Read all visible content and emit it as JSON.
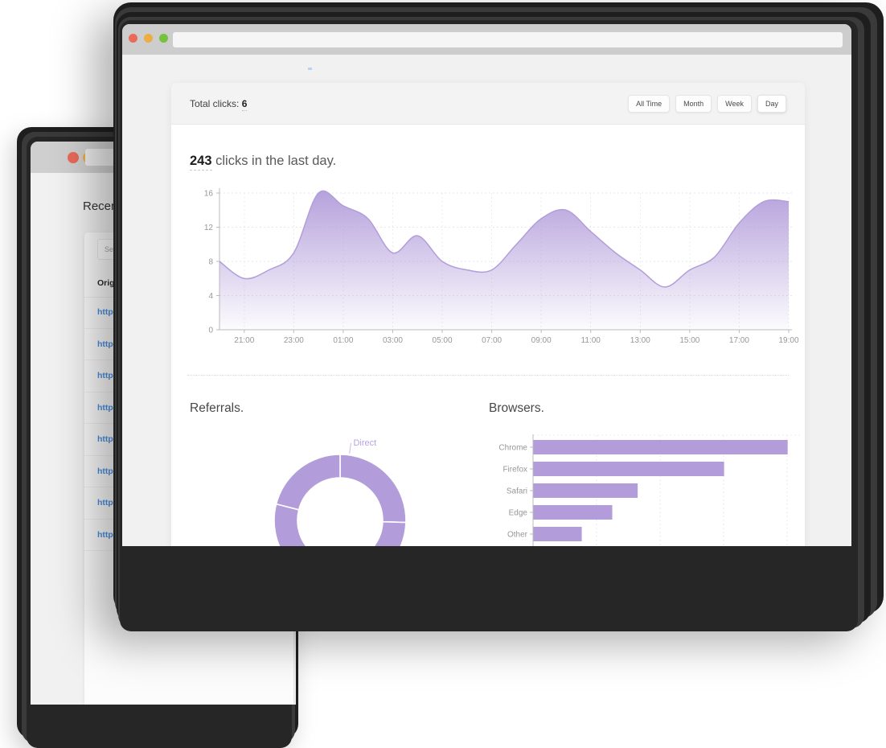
{
  "colors": {
    "accent_purple": "#b29dda",
    "donut_label_purple": "#b9a3e2",
    "link_blue": "#4a90e2",
    "traffic_red": "#ea6a5a",
    "traffic_yellow": "#eead43",
    "traffic_green": "#74c23f"
  },
  "back_window": {
    "heading": "Recent",
    "search": {
      "placeholder": "Search"
    },
    "table": {
      "header": "Origin",
      "rows": [
        "https:",
        "https:",
        "https:",
        "https:",
        "https:",
        "https:",
        "https:",
        "https:"
      ]
    }
  },
  "front_window": {
    "summary_bar": {
      "label": "Total clicks: ",
      "value": "6"
    },
    "filters": [
      {
        "label": "All Time",
        "active": false
      },
      {
        "label": "Month",
        "active": false
      },
      {
        "label": "Week",
        "active": false
      },
      {
        "label": "Day",
        "active": true
      }
    ],
    "headline": {
      "count": "243",
      "suffix": " clicks in the last day."
    },
    "sections": {
      "referrals": "Referrals.",
      "browsers": "Browsers."
    }
  },
  "chart_data": [
    {
      "type": "area",
      "title": "Clicks in the last day",
      "x": [
        "20:00",
        "21:00",
        "22:00",
        "23:00",
        "00:00",
        "01:00",
        "02:00",
        "03:00",
        "04:00",
        "05:00",
        "06:00",
        "07:00",
        "08:00",
        "09:00",
        "10:00",
        "11:00",
        "12:00",
        "13:00",
        "14:00",
        "15:00",
        "16:00",
        "17:00",
        "18:00",
        "19:00"
      ],
      "values": [
        8,
        6,
        7,
        9,
        16,
        14.5,
        13,
        9,
        11,
        8,
        7,
        7,
        10,
        13,
        14,
        11.5,
        9,
        7,
        5,
        7,
        8.5,
        12.5,
        15,
        15
      ],
      "x_tick_labels": [
        "21:00",
        "23:00",
        "01:00",
        "03:00",
        "05:00",
        "07:00",
        "09:00",
        "11:00",
        "13:00",
        "15:00",
        "17:00",
        "19:00"
      ],
      "yticks": [
        0,
        4,
        8,
        12,
        16
      ],
      "ylim": [
        0,
        16
      ],
      "grid": true,
      "legend": "none",
      "color": "#b29dda"
    },
    {
      "type": "pie",
      "title": "Referrals.",
      "labels": [
        "Direct",
        "",
        "",
        ""
      ],
      "values": [
        25.5,
        24.5,
        29,
        21
      ],
      "donut": true,
      "color": "#b29dda"
    },
    {
      "type": "bar",
      "orientation": "horizontal",
      "title": "Browsers.",
      "categories": [
        "Chrome",
        "Firefox",
        "Safari",
        "Edge",
        "Other"
      ],
      "values": [
        100,
        75,
        41,
        31,
        19
      ],
      "xlim": [
        0,
        105
      ],
      "gridline_step": 25,
      "grid": true,
      "color": "#b29dda"
    }
  ]
}
